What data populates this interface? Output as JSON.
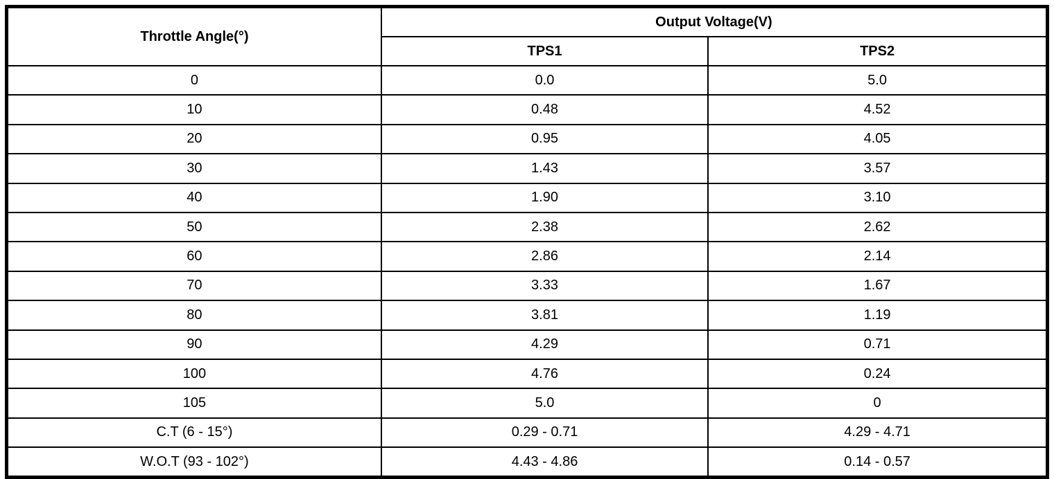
{
  "table": {
    "header": {
      "throttle_angle": "Throttle Angle(°)",
      "output_voltage_group": "Output Voltage(V)",
      "tps1": "TPS1",
      "tps2": "TPS2"
    },
    "rows": [
      {
        "angle": "0",
        "tps1": "0.0",
        "tps2": "5.0"
      },
      {
        "angle": "10",
        "tps1": "0.48",
        "tps2": "4.52"
      },
      {
        "angle": "20",
        "tps1": "0.95",
        "tps2": "4.05"
      },
      {
        "angle": "30",
        "tps1": "1.43",
        "tps2": "3.57"
      },
      {
        "angle": "40",
        "tps1": "1.90",
        "tps2": "3.10"
      },
      {
        "angle": "50",
        "tps1": "2.38",
        "tps2": "2.62"
      },
      {
        "angle": "60",
        "tps1": "2.86",
        "tps2": "2.14"
      },
      {
        "angle": "70",
        "tps1": "3.33",
        "tps2": "1.67"
      },
      {
        "angle": "80",
        "tps1": "3.81",
        "tps2": "1.19"
      },
      {
        "angle": "90",
        "tps1": "4.29",
        "tps2": "0.71"
      },
      {
        "angle": "100",
        "tps1": "4.76",
        "tps2": "0.24"
      },
      {
        "angle": "105",
        "tps1": "5.0",
        "tps2": "0"
      },
      {
        "angle": "C.T (6 - 15°)",
        "tps1": "0.29 - 0.71",
        "tps2": "4.29 - 4.71"
      },
      {
        "angle": "W.O.T (93 - 102°)",
        "tps1": "4.43 - 4.86",
        "tps2": "0.14 - 0.57"
      }
    ],
    "colors": {
      "border": "#000000",
      "background": "#ffffff",
      "text": "#000000"
    }
  }
}
